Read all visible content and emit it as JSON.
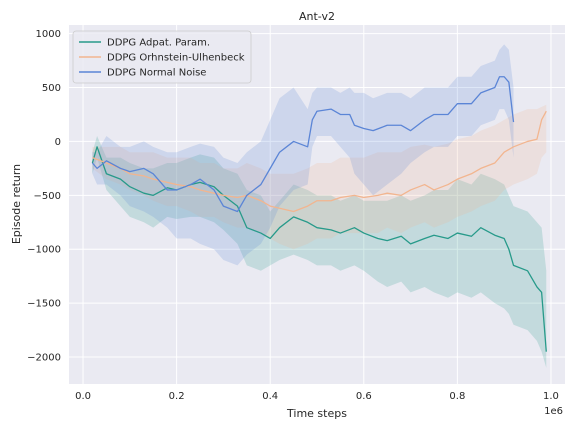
{
  "chart_data": {
    "type": "line",
    "title": "Ant-v2",
    "xlabel": "Time steps",
    "ylabel": "Episode return",
    "x_multiplier_label": "1e6",
    "xlim": [
      -0.03,
      1.03
    ],
    "ylim": [
      -2250,
      1080
    ],
    "x_ticks": [
      0.0,
      0.2,
      0.4,
      0.6,
      0.8,
      1.0
    ],
    "x_tick_labels": [
      "0.0",
      "0.2",
      "0.4",
      "0.6",
      "0.8",
      "1.0"
    ],
    "y_ticks": [
      -2000,
      -1500,
      -1000,
      -500,
      0,
      500,
      1000
    ],
    "y_tick_labels": [
      "−2000",
      "−1500",
      "−1000",
      "−500",
      "0",
      "500",
      "1000"
    ],
    "grid": true,
    "legend_position": "top-left",
    "series": [
      {
        "name": "DDPG Adpat. Param.",
        "color": "#279a8a",
        "x": [
          0.02,
          0.03,
          0.05,
          0.08,
          0.1,
          0.13,
          0.15,
          0.18,
          0.2,
          0.23,
          0.25,
          0.28,
          0.3,
          0.33,
          0.35,
          0.38,
          0.4,
          0.42,
          0.45,
          0.48,
          0.5,
          0.53,
          0.55,
          0.58,
          0.6,
          0.63,
          0.65,
          0.68,
          0.7,
          0.73,
          0.75,
          0.78,
          0.8,
          0.83,
          0.85,
          0.88,
          0.9,
          0.91,
          0.92,
          0.95,
          0.97,
          0.98,
          0.99
        ],
        "y": [
          -200,
          -50,
          -300,
          -350,
          -420,
          -480,
          -500,
          -430,
          -450,
          -400,
          -380,
          -420,
          -500,
          -600,
          -800,
          -850,
          -900,
          -800,
          -700,
          -750,
          -800,
          -820,
          -850,
          -800,
          -850,
          -900,
          -920,
          -880,
          -950,
          -900,
          -870,
          -900,
          -850,
          -880,
          -800,
          -870,
          -900,
          -1000,
          -1150,
          -1200,
          -1350,
          -1400,
          -1950
        ],
        "lower": [
          -300,
          -150,
          -450,
          -600,
          -700,
          -750,
          -800,
          -700,
          -720,
          -700,
          -700,
          -750,
          -820,
          -950,
          -1150,
          -1200,
          -1150,
          -1100,
          -1050,
          -1100,
          -1150,
          -1150,
          -1200,
          -1150,
          -1200,
          -1300,
          -1350,
          -1300,
          -1400,
          -1350,
          -1400,
          -1450,
          -1400,
          -1450,
          -1400,
          -1500,
          -1550,
          -1600,
          -1700,
          -1750,
          -1850,
          -1950,
          -2100
        ],
        "upper": [
          -100,
          50,
          -150,
          -150,
          -200,
          -250,
          -250,
          -200,
          -200,
          -150,
          -120,
          -150,
          -250,
          -300,
          -450,
          -500,
          -650,
          -550,
          -400,
          -450,
          -500,
          -500,
          -550,
          -500,
          -550,
          -550,
          -550,
          -500,
          -550,
          -500,
          -450,
          -450,
          -350,
          -400,
          -300,
          -350,
          -400,
          -500,
          -600,
          -650,
          -750,
          -800,
          -1200
        ]
      },
      {
        "name": "DDPG Orhnstein-Ulhenbeck",
        "color": "#f2b58f",
        "x": [
          0.02,
          0.05,
          0.08,
          0.1,
          0.13,
          0.15,
          0.18,
          0.2,
          0.23,
          0.25,
          0.28,
          0.3,
          0.33,
          0.35,
          0.38,
          0.4,
          0.42,
          0.45,
          0.48,
          0.5,
          0.53,
          0.55,
          0.58,
          0.6,
          0.63,
          0.65,
          0.68,
          0.7,
          0.73,
          0.75,
          0.78,
          0.8,
          0.83,
          0.85,
          0.88,
          0.9,
          0.92,
          0.95,
          0.97,
          0.98,
          0.99
        ],
        "y": [
          -150,
          -200,
          -250,
          -300,
          -320,
          -350,
          -380,
          -400,
          -420,
          -450,
          -480,
          -500,
          -520,
          -500,
          -550,
          -600,
          -620,
          -650,
          -600,
          -550,
          -550,
          -520,
          -500,
          -520,
          -500,
          -480,
          -500,
          -450,
          -400,
          -450,
          -400,
          -350,
          -300,
          -250,
          -200,
          -100,
          -50,
          0,
          20,
          200,
          280
        ],
        "lower": [
          -250,
          -350,
          -400,
          -450,
          -500,
          -550,
          -600,
          -600,
          -650,
          -700,
          -700,
          -750,
          -800,
          -800,
          -850,
          -900,
          -950,
          -1000,
          -950,
          -900,
          -900,
          -850,
          -850,
          -850,
          -850,
          -800,
          -850,
          -800,
          -750,
          -800,
          -750,
          -700,
          -650,
          -600,
          -550,
          -450,
          -400,
          -350,
          -300,
          -150,
          -100
        ],
        "upper": [
          -50,
          -50,
          -50,
          -100,
          -100,
          -100,
          -150,
          -150,
          -150,
          -200,
          -200,
          -250,
          -250,
          -200,
          -250,
          -300,
          -300,
          -300,
          -250,
          -200,
          -200,
          -150,
          -150,
          -150,
          -100,
          -100,
          -100,
          -50,
          -30,
          -50,
          -20,
          20,
          50,
          100,
          150,
          200,
          250,
          300,
          300,
          320,
          340
        ]
      },
      {
        "name": "DDPG Normal Noise",
        "color": "#5b85d6",
        "x": [
          0.02,
          0.03,
          0.05,
          0.08,
          0.1,
          0.13,
          0.15,
          0.18,
          0.2,
          0.23,
          0.25,
          0.28,
          0.3,
          0.33,
          0.35,
          0.38,
          0.4,
          0.42,
          0.45,
          0.48,
          0.49,
          0.5,
          0.53,
          0.55,
          0.57,
          0.58,
          0.6,
          0.62,
          0.65,
          0.68,
          0.7,
          0.73,
          0.75,
          0.78,
          0.8,
          0.83,
          0.85,
          0.88,
          0.89,
          0.9,
          0.91,
          0.92
        ],
        "y": [
          -200,
          -250,
          -180,
          -250,
          -280,
          -250,
          -300,
          -450,
          -450,
          -400,
          -350,
          -450,
          -600,
          -650,
          -500,
          -400,
          -250,
          -100,
          0,
          -50,
          200,
          280,
          300,
          250,
          250,
          150,
          120,
          100,
          150,
          150,
          100,
          200,
          250,
          250,
          350,
          350,
          450,
          500,
          600,
          600,
          550,
          180
        ],
        "lower": [
          -300,
          -400,
          -400,
          -500,
          -600,
          -650,
          -700,
          -800,
          -900,
          -900,
          -950,
          -1000,
          -1100,
          -1150,
          -1050,
          -950,
          -800,
          -600,
          -450,
          -400,
          -50,
          50,
          50,
          -50,
          -150,
          -300,
          -400,
          -500,
          -400,
          -300,
          -200,
          -100,
          -50,
          -50,
          50,
          50,
          150,
          200,
          300,
          300,
          200,
          -150
        ],
        "upper": [
          -100,
          -100,
          50,
          -50,
          -50,
          0,
          -50,
          -100,
          -100,
          -50,
          -20,
          -50,
          -150,
          -200,
          -100,
          0,
          200,
          400,
          500,
          300,
          450,
          500,
          500,
          450,
          500,
          450,
          450,
          400,
          450,
          450,
          400,
          500,
          500,
          500,
          600,
          600,
          700,
          750,
          850,
          900,
          850,
          500
        ]
      }
    ]
  }
}
